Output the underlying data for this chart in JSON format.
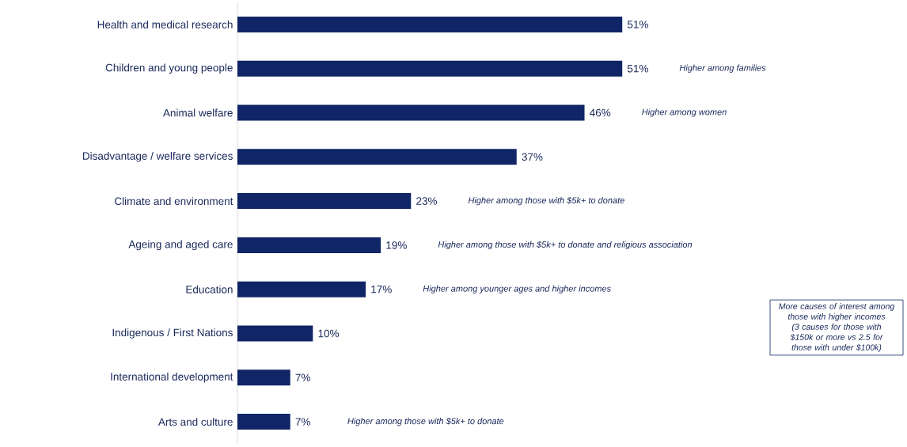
{
  "chart_data": {
    "type": "bar",
    "orientation": "horizontal",
    "categories": [
      "Health and medical research",
      "Children and young people",
      "Animal welfare",
      "Disadvantage / welfare services",
      "Climate and environment",
      "Ageing and aged care",
      "Education",
      "Indigenous / First Nations",
      "International development",
      "Arts and culture"
    ],
    "values": [
      51,
      51,
      46,
      37,
      23,
      19,
      17,
      10,
      7,
      7
    ],
    "value_labels": [
      "51%",
      "51%",
      "46%",
      "37%",
      "23%",
      "19%",
      "17%",
      "10%",
      "7%",
      "7%"
    ],
    "color": "#0f2565",
    "annotations": [
      "Higher among families",
      "Higher among women",
      "Higher among those with $5k+ to donate",
      "Higher among those with $5k+ to donate and religious association",
      "Higher among younger ages and higher incomes",
      "Higher among those with $5k+ to donate",
      "More causes of interest among those with higher incomes (3 causes for those with $150k or more vs 2.5 for those with under $100k)"
    ]
  }
}
